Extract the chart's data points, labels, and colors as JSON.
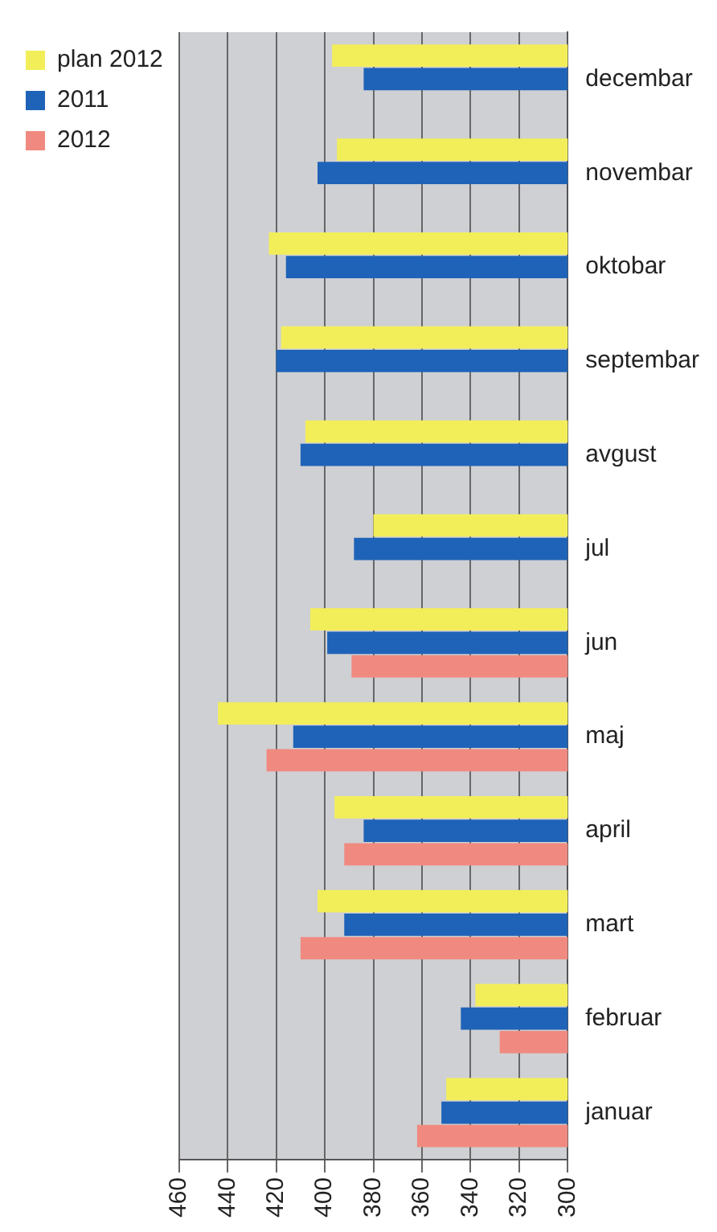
{
  "chart_data": {
    "type": "bar",
    "orientation": "horizontal",
    "categories": [
      "decembar",
      "novembar",
      "oktobar",
      "septembar",
      "avgust",
      "jul",
      "jun",
      "maj",
      "april",
      "mart",
      "februar",
      "januar"
    ],
    "series": [
      {
        "name": "plan 2012",
        "color": "#f2ee5a",
        "values": [
          397,
          395,
          423,
          418,
          408,
          380,
          406,
          444,
          396,
          403,
          338,
          350
        ]
      },
      {
        "name": "2011",
        "color": "#1f63b8",
        "values": [
          384,
          403,
          416,
          420,
          410,
          388,
          399,
          413,
          384,
          392,
          344,
          352
        ]
      },
      {
        "name": "2012",
        "color": "#f08a80",
        "values": [
          null,
          null,
          null,
          null,
          null,
          null,
          389,
          424,
          392,
          410,
          328,
          362
        ]
      }
    ],
    "xlim": [
      460,
      300
    ],
    "xticks": [
      460,
      440,
      420,
      400,
      380,
      360,
      340,
      320,
      300
    ],
    "grid": "x",
    "legend": "top left"
  }
}
